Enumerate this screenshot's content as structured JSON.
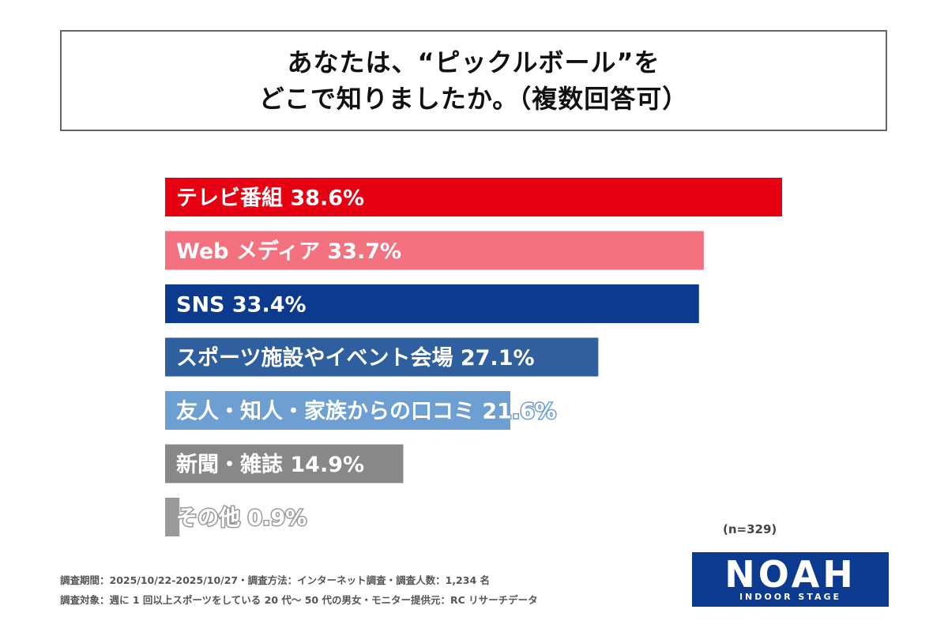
{
  "title": {
    "line1": "あなたは、“ピックルボール”を",
    "line2": "どこで知りましたか。（複数回答可）"
  },
  "chart_data": {
    "type": "bar",
    "orientation": "horizontal",
    "categories": [
      "テレビ番組",
      "Web メディア",
      "SNS",
      "スポーツ施設やイベント会場",
      "友人・知人・家族からの口コミ",
      "新聞・雑誌",
      "その他"
    ],
    "values": [
      38.6,
      33.7,
      33.4,
      27.1,
      21.6,
      14.9,
      0.9
    ],
    "value_labels": [
      "38.6%",
      "33.7%",
      "33.4%",
      "27.1%",
      "21.6%",
      "14.9%",
      "0.9%"
    ],
    "colors": [
      "#e60012",
      "#f4717f",
      "#0b3a8f",
      "#2f5f9e",
      "#6d9fd2",
      "#888888",
      "#9a9a9a"
    ],
    "xlim": [
      0,
      38.6
    ],
    "grid": false,
    "title": "",
    "xlabel": "",
    "ylabel": ""
  },
  "sample_size": "(n=329)",
  "notes": {
    "line1": "調査期間：2025/10/22-2025/10/27・調査方法：インターネット調査・調査人数：1,234 名",
    "line2": "調査対象：週に 1 回以上スポーツをしている 20 代〜 50 代の男女・モニター提供元：RC リサーチデータ"
  },
  "logo": {
    "name": "NOAH",
    "subtitle": "INDOOR STAGE",
    "color": "#0b3a8f"
  }
}
